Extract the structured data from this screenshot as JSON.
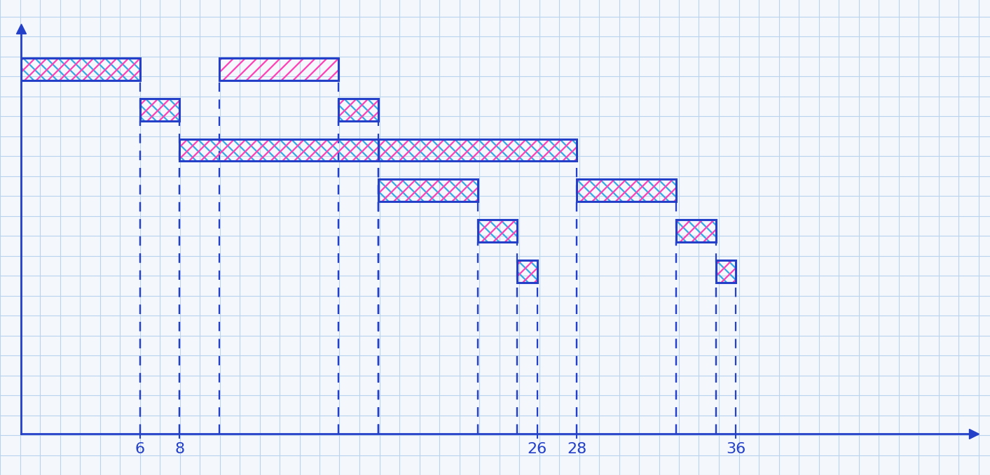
{
  "chart_data": {
    "type": "gantt",
    "xlim": [
      0,
      48
    ],
    "xticks": [
      6,
      8,
      26,
      28,
      36
    ],
    "ylim": [
      -3,
      7
    ],
    "tick_labels": "x",
    "grid": true,
    "bars": [
      {
        "start": 0,
        "end": 6,
        "row": 6,
        "colors": [
          "#35a8e6",
          "#ff3fb4"
        ]
      },
      {
        "start": 10,
        "end": 16,
        "row": 6,
        "colors": [
          "#ff3fb4"
        ]
      },
      {
        "start": 6,
        "end": 8,
        "row": 5,
        "colors": [
          "#35a8e6",
          "#ff3fb4"
        ]
      },
      {
        "start": 16,
        "end": 18,
        "row": 5,
        "colors": [
          "#35a8e6",
          "#ff3fb4"
        ]
      },
      {
        "start": 8,
        "end": 18,
        "row": 4,
        "colors": [
          "#35a8e6",
          "#ff3fb4"
        ]
      },
      {
        "start": 18,
        "end": 28,
        "row": 4,
        "colors": [
          "#35a8e6",
          "#ff3fb4"
        ]
      },
      {
        "start": 18,
        "end": 23,
        "row": 3,
        "colors": [
          "#35a8e6",
          "#ff3fb4"
        ]
      },
      {
        "start": 28,
        "end": 33,
        "row": 3,
        "colors": [
          "#35a8e6",
          "#ff3fb4"
        ]
      },
      {
        "start": 23,
        "end": 25,
        "row": 2,
        "colors": [
          "#35a8e6",
          "#ff3fb4"
        ]
      },
      {
        "start": 33,
        "end": 35,
        "row": 2,
        "colors": [
          "#35a8e6",
          "#ff3fb4"
        ]
      },
      {
        "start": 25,
        "end": 26,
        "row": 1,
        "colors": [
          "#35a8e6",
          "#ff3fb4"
        ]
      },
      {
        "start": 35,
        "end": 36,
        "row": 1,
        "colors": [
          "#35a8e6",
          "#ff3fb4"
        ]
      }
    ]
  }
}
